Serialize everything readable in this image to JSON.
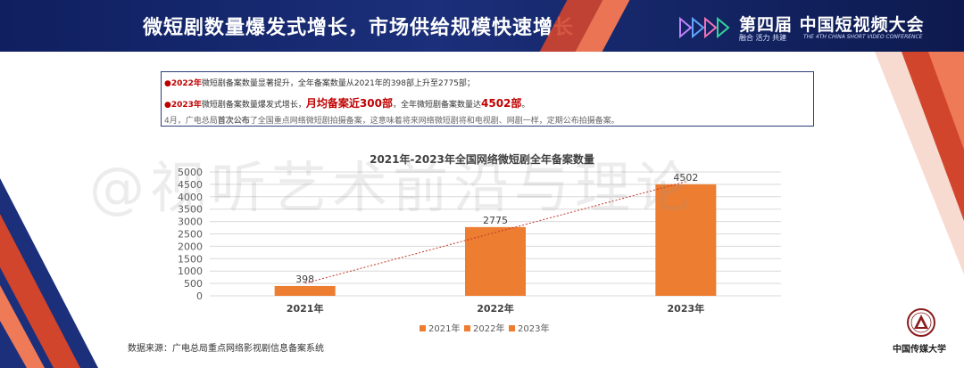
{
  "header": {
    "title": "微短剧数量爆发式增长，市场供给规模快速增长",
    "logo_main": "第四届 中国短视频大会",
    "logo_sub": "融合 活力 共建",
    "logo_sub_en": "THE 4TH CHINA SHORT VIDEO CONFERENCE"
  },
  "info": {
    "line1_year": "●2022年",
    "line1_text": "微短剧备案数量显著提升，全年备案数量从2021年的398部上升至2775部；",
    "line2_year": "●2023年",
    "line2_text_a": "微短剧备案数量爆发式增长，",
    "line2_highlight": "月均备案近300部",
    "line2_text_b": "，全年微短剧备案数量达",
    "line2_highlight2": "4502部",
    "line2_text_c": "。",
    "line3_text_a": "4月，广电总局",
    "line3_bold": "首次公布",
    "line3_text_b": "了全国重点网络微短剧拍摄备案，这意味着将来网络微短剧将和电视剧、网剧一样，定期公布拍摄备案。"
  },
  "watermark": "@视听艺术前沿与理论",
  "source": "数据来源：广电总局重点网络影视剧信息备案系统",
  "university": "中国传媒大学",
  "colors": {
    "bar": "#ed7d31",
    "header": "#1b2f7a",
    "accent_red": "#c00000"
  },
  "chart_data": {
    "type": "bar",
    "title": "2021年-2023年全国网络微短剧全年备案数量",
    "categories": [
      "2021年",
      "2022年",
      "2023年"
    ],
    "series": [
      {
        "name": "2021年",
        "values": [
          398,
          null,
          null
        ]
      },
      {
        "name": "2022年",
        "values": [
          null,
          2775,
          null
        ]
      },
      {
        "name": "2023年",
        "values": [
          null,
          null,
          4502
        ]
      }
    ],
    "values": [
      398,
      2775,
      4502
    ],
    "data_labels": [
      "398",
      "2775",
      "4502"
    ],
    "yticks": [
      "0",
      "500",
      "1000",
      "1500",
      "2000",
      "2500",
      "3000",
      "3500",
      "4000",
      "4500",
      "5000"
    ],
    "ylim": [
      0,
      5000
    ],
    "grid": true,
    "trendline": "linear",
    "legend": "bottom"
  }
}
